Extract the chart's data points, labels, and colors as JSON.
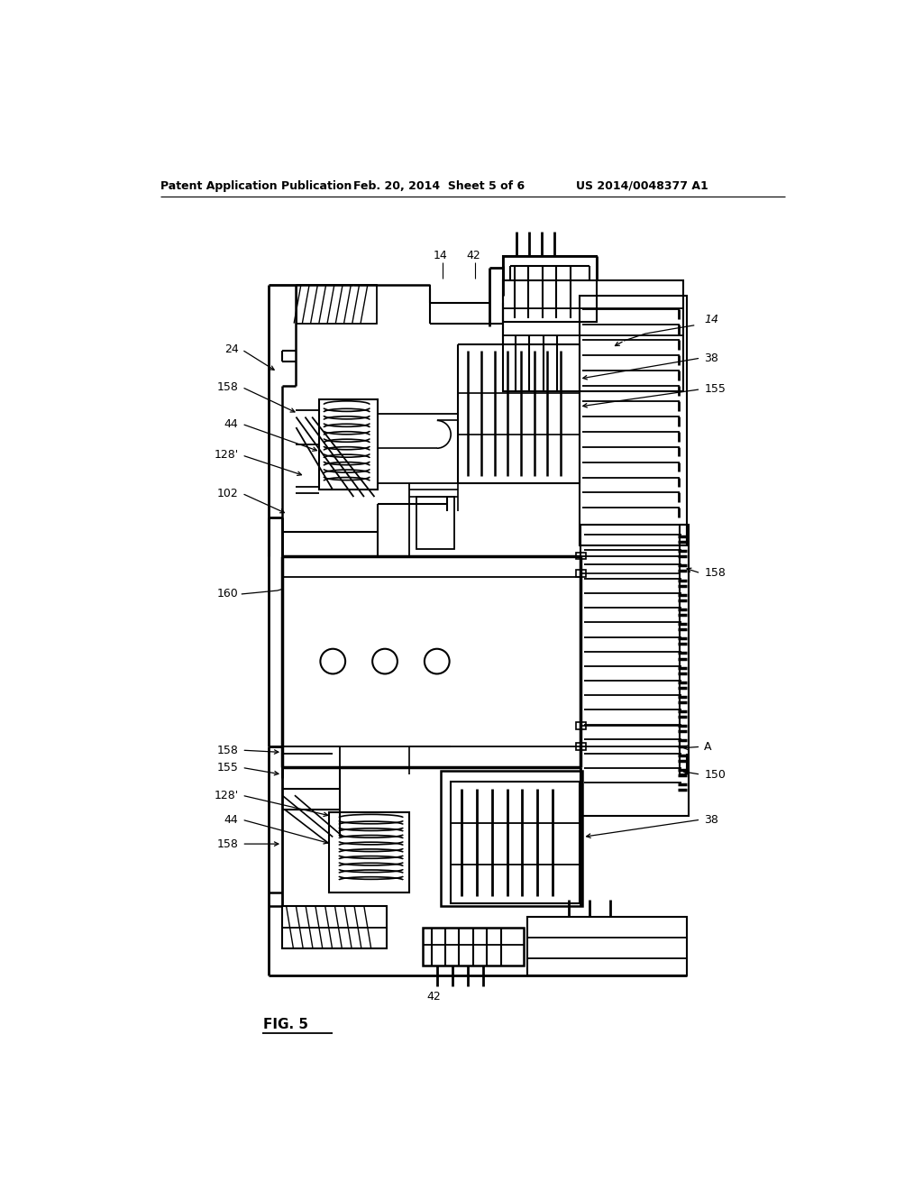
{
  "header_left": "Patent Application Publication",
  "header_mid": "Feb. 20, 2014  Sheet 5 of 6",
  "header_right": "US 2014/0048377 A1",
  "figure_label": "FIG. 5",
  "background": "#ffffff",
  "line_color": "#000000"
}
